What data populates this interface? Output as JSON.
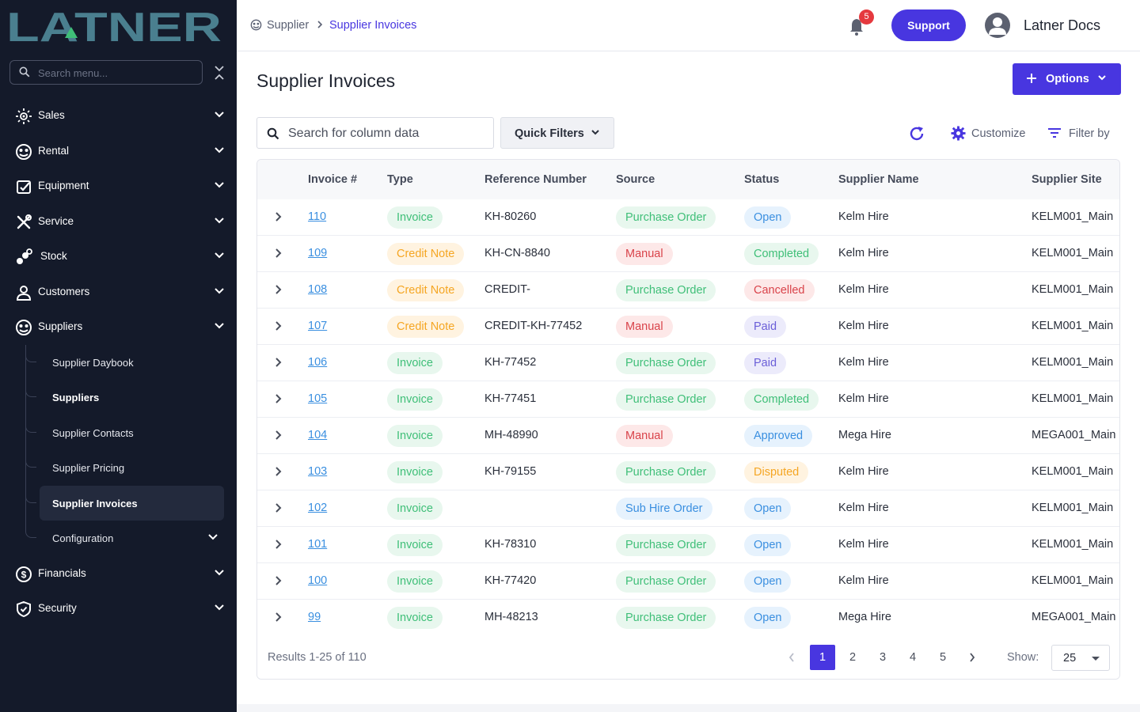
{
  "brand": {
    "logo_text": "LATNER"
  },
  "sidebar": {
    "search_placeholder": "Search menu...",
    "items": [
      {
        "label": "Sales",
        "icon": "sales-icon"
      },
      {
        "label": "Rental",
        "icon": "rental-icon"
      },
      {
        "label": "Equipment",
        "icon": "equipment-icon"
      },
      {
        "label": "Service",
        "icon": "service-icon"
      },
      {
        "label": "Stock",
        "icon": "stock-icon"
      },
      {
        "label": "Customers",
        "icon": "customers-icon"
      },
      {
        "label": "Suppliers",
        "icon": "suppliers-icon"
      }
    ],
    "sub_items": [
      {
        "label": "Supplier Daybook"
      },
      {
        "label": "Suppliers"
      },
      {
        "label": "Supplier Contacts"
      },
      {
        "label": "Supplier Pricing"
      },
      {
        "label": "Supplier Invoices"
      },
      {
        "label": "Configuration"
      }
    ],
    "bottom_items": [
      {
        "label": "Financials",
        "icon": "financials-icon"
      },
      {
        "label": "Security",
        "icon": "security-icon"
      }
    ]
  },
  "topbar": {
    "breadcrumb": [
      "Supplier",
      "Supplier Invoices"
    ],
    "notification_count": "5",
    "support_label": "Support",
    "user_name": "Latner Docs"
  },
  "page": {
    "title": "Supplier Invoices",
    "options_label": "Options",
    "search_placeholder": "Search for column data",
    "quick_filters_label": "Quick Filters",
    "customize_label": "Customize",
    "filter_by_label": "Filter by"
  },
  "table": {
    "columns": [
      "Invoice #",
      "Type",
      "Reference Number",
      "Source",
      "Status",
      "Supplier Name",
      "Supplier Site"
    ],
    "rows": [
      {
        "invoice": "110",
        "type": "Invoice",
        "ref": "KH-80260",
        "source": "Purchase Order",
        "status": "Open",
        "supplier": "Kelm Hire",
        "site": "KELM001_Main"
      },
      {
        "invoice": "109",
        "type": "Credit Note",
        "ref": "KH-CN-8840",
        "source": "Manual",
        "status": "Completed",
        "supplier": "Kelm Hire",
        "site": "KELM001_Main"
      },
      {
        "invoice": "108",
        "type": "Credit Note",
        "ref": "CREDIT-",
        "source": "Purchase Order",
        "status": "Cancelled",
        "supplier": "Kelm Hire",
        "site": "KELM001_Main"
      },
      {
        "invoice": "107",
        "type": "Credit Note",
        "ref": "CREDIT-KH-77452",
        "source": "Manual",
        "status": "Paid",
        "supplier": "Kelm Hire",
        "site": "KELM001_Main"
      },
      {
        "invoice": "106",
        "type": "Invoice",
        "ref": "KH-77452",
        "source": "Purchase Order",
        "status": "Paid",
        "supplier": "Kelm Hire",
        "site": "KELM001_Main"
      },
      {
        "invoice": "105",
        "type": "Invoice",
        "ref": "KH-77451",
        "source": "Purchase Order",
        "status": "Completed",
        "supplier": "Kelm Hire",
        "site": "KELM001_Main"
      },
      {
        "invoice": "104",
        "type": "Invoice",
        "ref": "MH-48990",
        "source": "Manual",
        "status": "Approved",
        "supplier": "Mega Hire",
        "site": "MEGA001_Main"
      },
      {
        "invoice": "103",
        "type": "Invoice",
        "ref": "KH-79155",
        "source": "Purchase Order",
        "status": "Disputed",
        "supplier": "Kelm Hire",
        "site": "KELM001_Main"
      },
      {
        "invoice": "102",
        "type": "Invoice",
        "ref": "",
        "source": "Sub Hire Order",
        "status": "Open",
        "supplier": "Kelm Hire",
        "site": "KELM001_Main"
      },
      {
        "invoice": "101",
        "type": "Invoice",
        "ref": "KH-78310",
        "source": "Purchase Order",
        "status": "Open",
        "supplier": "Kelm Hire",
        "site": "KELM001_Main"
      },
      {
        "invoice": "100",
        "type": "Invoice",
        "ref": "KH-77420",
        "source": "Purchase Order",
        "status": "Open",
        "supplier": "Kelm Hire",
        "site": "KELM001_Main"
      },
      {
        "invoice": "99",
        "type": "Invoice",
        "ref": "MH-48213",
        "source": "Purchase Order",
        "status": "Open",
        "supplier": "Mega Hire",
        "site": "MEGA001_Main"
      }
    ]
  },
  "pill_styles": {
    "Invoice": {
      "bg": "#e8f7ee",
      "fg": "#3fbf78"
    },
    "Credit Note": {
      "bg": "#fff3e0",
      "fg": "#f5a623"
    },
    "Purchase Order": {
      "bg": "#e8f7ee",
      "fg": "#3fbf78"
    },
    "Manual": {
      "bg": "#fde8e8",
      "fg": "#d9434a"
    },
    "Sub Hire Order": {
      "bg": "#e6f2fd",
      "fg": "#3a8fe0"
    },
    "Open": {
      "bg": "#e6f2fd",
      "fg": "#3a8fe0"
    },
    "Completed": {
      "bg": "#e8f7ee",
      "fg": "#3fbf78"
    },
    "Cancelled": {
      "bg": "#fde8e8",
      "fg": "#d9434a"
    },
    "Paid": {
      "bg": "#ecebfb",
      "fg": "#6a5ed8"
    },
    "Approved": {
      "bg": "#e6f2fd",
      "fg": "#3a8fe0"
    },
    "Disputed": {
      "bg": "#fff3e0",
      "fg": "#f5a623"
    }
  },
  "footer": {
    "results_text": "Results 1-25 of 110",
    "pages": [
      "1",
      "2",
      "3",
      "4",
      "5"
    ],
    "active_page": "1",
    "show_label": "Show:",
    "page_size": "25"
  },
  "colors": {
    "accent": "#4836e0",
    "sidebar_bg": "#141a2a",
    "link": "#3a8fe0",
    "logo_teal": "#4a7f8f",
    "logo_green": "#3fbf78"
  }
}
